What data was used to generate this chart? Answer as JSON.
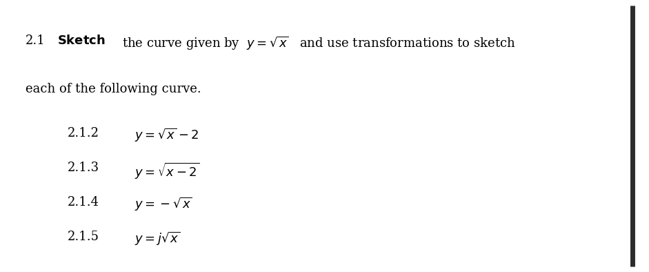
{
  "background_color": "#ffffff",
  "fig_width": 9.41,
  "fig_height": 3.94,
  "dpi": 100,
  "right_bar_color": "#2c2c2c",
  "text_color": "#000000",
  "main_fontsize": 13,
  "sub_fontsize": 13
}
